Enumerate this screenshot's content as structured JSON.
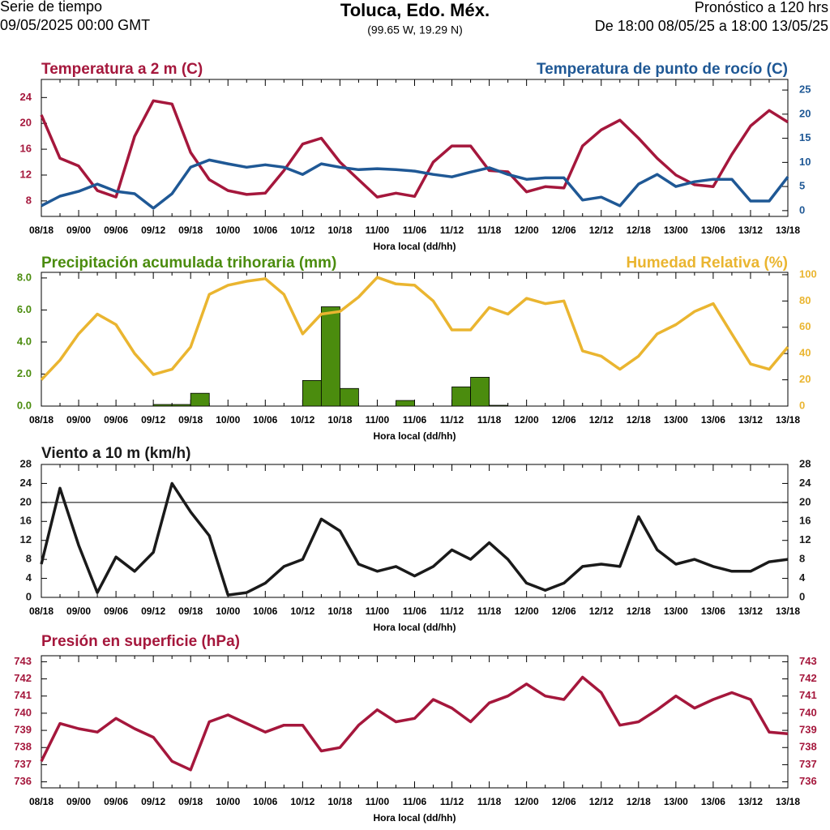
{
  "header": {
    "series_label": "Serie de tiempo",
    "issue_time": "09/05/2025 00:00 GMT",
    "location": "Toluca, Edo. Méx.",
    "coordinates": "(99.65 W, 19.29 N)",
    "forecast": "Pronóstico a 120 hrs",
    "period": "De 18:00 08/05/25 a 18:00 13/05/25"
  },
  "chart_data": [
    {
      "type": "line",
      "xlabel": "Hora local (dd/hh)",
      "categories": [
        "08/18",
        null,
        "09/00",
        null,
        "09/06",
        null,
        "09/12",
        null,
        "09/18",
        null,
        "10/00",
        null,
        "10/06",
        null,
        "10/12",
        null,
        "10/18",
        null,
        "11/00",
        null,
        "11/06",
        null,
        "11/12",
        null,
        "11/18",
        null,
        "12/00",
        null,
        "12/06",
        null,
        "12/12",
        null,
        "12/18",
        null,
        "13/00",
        null,
        "13/06",
        null,
        "13/12",
        null,
        "13/18"
      ],
      "ylim": [
        5.6,
        26.8
      ],
      "yticks": [
        8,
        12,
        16,
        20,
        24
      ],
      "y2lim": [
        -1.2,
        27.2
      ],
      "y2ticks": [
        0,
        5,
        10,
        15,
        20,
        25
      ],
      "series": [
        {
          "name": "Temperatura a 2 m (C)",
          "color": "#a5173c",
          "values": [
            21.3,
            14.6,
            13.4,
            9.6,
            8.6,
            18,
            23.5,
            23,
            15.5,
            11.3,
            9.6,
            9,
            9.2,
            12.7,
            16.8,
            17.7,
            14,
            11.3,
            8.6,
            9.2,
            8.7,
            14,
            16.5,
            16.5,
            12.7,
            12.5,
            9.4,
            10.2,
            10,
            16.5,
            19,
            20.5,
            17.7,
            14.6,
            12,
            10.5,
            10.2,
            15.2,
            19.6,
            22,
            20.2
          ]
        },
        {
          "name": "Temperatura de punto de rocío (C)",
          "color": "#1f5895",
          "axis": "y2",
          "values": [
            1,
            3,
            4,
            5.5,
            4,
            3.5,
            0.5,
            3.5,
            9,
            10.5,
            9.7,
            9,
            9.5,
            9,
            7.5,
            9.7,
            9,
            8.5,
            8.7,
            8.5,
            8.2,
            7.5,
            7,
            8,
            8.9,
            7.5,
            6.5,
            6.8,
            6.8,
            2.2,
            2.8,
            1,
            5.5,
            7.5,
            5,
            6,
            6.5,
            6.5,
            2,
            2,
            7
          ]
        }
      ]
    },
    {
      "type": "combo",
      "xlabel": "Hora local (dd/hh)",
      "categories": [
        "08/18",
        null,
        "09/00",
        null,
        "09/06",
        null,
        "09/12",
        null,
        "09/18",
        null,
        "10/00",
        null,
        "10/06",
        null,
        "10/12",
        null,
        "10/18",
        null,
        "11/00",
        null,
        "11/06",
        null,
        "11/12",
        null,
        "11/18",
        null,
        "12/00",
        null,
        "12/06",
        null,
        "12/12",
        null,
        "12/18",
        null,
        "13/00",
        null,
        "13/06",
        null,
        "13/12",
        null,
        "13/18"
      ],
      "ylim": [
        0,
        8.35
      ],
      "yticks": [
        {
          "value": 0,
          "label": "0.0"
        },
        {
          "value": 2,
          "label": "2.0"
        },
        {
          "value": 4,
          "label": "4.0"
        },
        {
          "value": 6,
          "label": "6.0"
        },
        {
          "value": 8,
          "label": "8.0"
        }
      ],
      "y2lim": [
        0,
        101.8
      ],
      "y2ticks": [
        0,
        20,
        40,
        60,
        80,
        100
      ],
      "series": [
        {
          "name": "Precipitación acumulada trihoraria (mm)",
          "type": "bar",
          "color": "#4b8c0e",
          "values": [
            0,
            0,
            0,
            0,
            0,
            0,
            0.1,
            0.1,
            0.8,
            0,
            0,
            0,
            0,
            0,
            1.6,
            6.2,
            1.1,
            0,
            0,
            0.35,
            0,
            0,
            1.2,
            1.8,
            0.05,
            0,
            0,
            0,
            0,
            0,
            0,
            0,
            0,
            0,
            0,
            0,
            0,
            0,
            0,
            0,
            0
          ]
        },
        {
          "name": "Humedad Relativa (%)",
          "color": "#eab530",
          "axis": "y2",
          "values": [
            20,
            35,
            55,
            70,
            62,
            40,
            24,
            28,
            45,
            85,
            92,
            95,
            97,
            85,
            55,
            70,
            72,
            83,
            98,
            93,
            92,
            80,
            58,
            58,
            75,
            70,
            82,
            78,
            80,
            42,
            38,
            28,
            38,
            55,
            62,
            72,
            78,
            55,
            32,
            28,
            45
          ]
        }
      ]
    },
    {
      "type": "line",
      "xlabel": "Hora local (dd/hh)",
      "categories": [
        "08/18",
        null,
        "09/00",
        null,
        "09/06",
        null,
        "09/12",
        null,
        "09/18",
        null,
        "10/00",
        null,
        "10/06",
        null,
        "10/12",
        null,
        "10/18",
        null,
        "11/00",
        null,
        "11/06",
        null,
        "11/12",
        null,
        "11/18",
        null,
        "12/00",
        null,
        "12/06",
        null,
        "12/12",
        null,
        "12/18",
        null,
        "13/00",
        null,
        "13/06",
        null,
        "13/12",
        null,
        "13/18"
      ],
      "ylim": [
        0,
        28
      ],
      "yticks": [
        0,
        4,
        8,
        12,
        16,
        20,
        24,
        28
      ],
      "y2lim": [
        0,
        28
      ],
      "y2ticks": [
        0,
        4,
        8,
        12,
        16,
        20,
        24,
        28
      ],
      "hline": 20,
      "series": [
        {
          "name": "Viento a 10 m (km/h)",
          "color": "#1a1a1a",
          "values": [
            7,
            23,
            11,
            1,
            8.5,
            5.5,
            9.5,
            24,
            18,
            13,
            0.5,
            1,
            3,
            6.5,
            8,
            16.5,
            14,
            7,
            5.5,
            6.5,
            4.5,
            6.5,
            10,
            8,
            11.5,
            8,
            3,
            1.5,
            3,
            6.5,
            7,
            6.5,
            17,
            10,
            7,
            8,
            6.5,
            5.5,
            5.5,
            7.5,
            8
          ]
        }
      ]
    },
    {
      "type": "line",
      "xlabel": "Hora local (dd/hh)",
      "categories": [
        "08/18",
        null,
        "09/00",
        null,
        "09/06",
        null,
        "09/12",
        null,
        "09/18",
        null,
        "10/00",
        null,
        "10/06",
        null,
        "10/12",
        null,
        "10/18",
        null,
        "11/00",
        null,
        "11/06",
        null,
        "11/12",
        null,
        "11/18",
        null,
        "12/00",
        null,
        "12/06",
        null,
        "12/12",
        null,
        "12/18",
        null,
        "13/00",
        null,
        "13/06",
        null,
        "13/12",
        null,
        "13/18"
      ],
      "ylim": [
        735.65,
        743.35
      ],
      "yticks": [
        736,
        737,
        738,
        739,
        740,
        741,
        742,
        743
      ],
      "y2lim": [
        735.65,
        743.35
      ],
      "y2ticks": [
        736,
        737,
        738,
        739,
        740,
        741,
        742,
        743
      ],
      "series": [
        {
          "name": "Presión en superficie (hPa)",
          "color": "#a5173c",
          "values": [
            737.2,
            739.4,
            739.1,
            738.9,
            739.7,
            739.1,
            738.6,
            737.2,
            736.7,
            739.5,
            739.9,
            739.4,
            738.9,
            739.3,
            739.3,
            737.8,
            738.0,
            739.3,
            740.2,
            739.5,
            739.7,
            740.8,
            740.3,
            739.5,
            740.6,
            741.0,
            741.7,
            741.0,
            740.8,
            742.1,
            741.2,
            739.3,
            739.5,
            740.2,
            741.0,
            740.3,
            740.8,
            741.2,
            740.8,
            738.9,
            738.8
          ]
        }
      ]
    }
  ]
}
